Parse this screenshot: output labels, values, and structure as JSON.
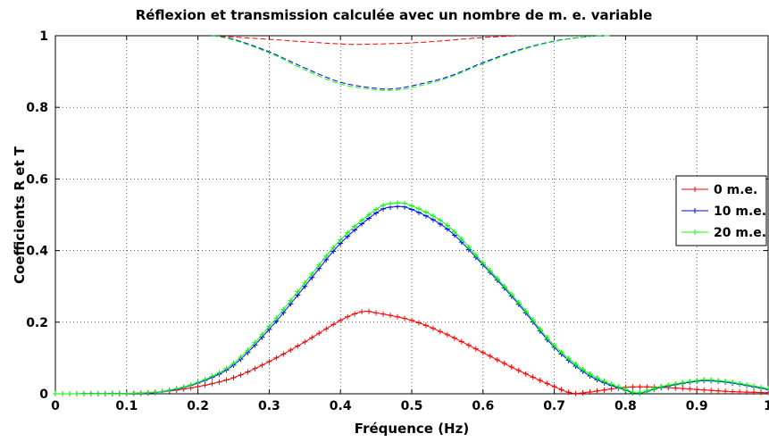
{
  "chart_data": {
    "type": "line",
    "title": "Réflexion et transmission calculée avec un nombre de m. e. variable",
    "xlabel": "Fréquence (Hz)",
    "ylabel": "Coefficients R et T",
    "xlim": [
      0,
      1
    ],
    "ylim": [
      0,
      1
    ],
    "xticks": [
      "0",
      "0.1",
      "0.2",
      "0.3",
      "0.4",
      "0.5",
      "0.6",
      "0.7",
      "0.8",
      "0.9",
      "1"
    ],
    "yticks": [
      "0",
      "0.2",
      "0.4",
      "0.6",
      "0.8",
      "1"
    ],
    "grid": true,
    "legend_position": "right",
    "series": [
      {
        "name": "0 m.e.",
        "color": "#ff0000",
        "marker": "plus",
        "points": [
          [
            0,
            0
          ],
          [
            0.1,
            0.001
          ],
          [
            0.15,
            0.006
          ],
          [
            0.2,
            0.02
          ],
          [
            0.25,
            0.045
          ],
          [
            0.3,
            0.09
          ],
          [
            0.35,
            0.145
          ],
          [
            0.4,
            0.205
          ],
          [
            0.43,
            0.229
          ],
          [
            0.45,
            0.226
          ],
          [
            0.5,
            0.205
          ],
          [
            0.55,
            0.165
          ],
          [
            0.6,
            0.115
          ],
          [
            0.65,
            0.065
          ],
          [
            0.7,
            0.02
          ],
          [
            0.725,
            0.002
          ],
          [
            0.75,
            0.005
          ],
          [
            0.8,
            0.018
          ],
          [
            0.85,
            0.018
          ],
          [
            0.9,
            0.012
          ],
          [
            0.95,
            0.006
          ],
          [
            1,
            0.003
          ]
        ]
      },
      {
        "name": "10 m.e.",
        "color": "#0000ff",
        "marker": "plus",
        "points": [
          [
            0,
            0
          ],
          [
            0.1,
            0.001
          ],
          [
            0.15,
            0.006
          ],
          [
            0.2,
            0.03
          ],
          [
            0.25,
            0.08
          ],
          [
            0.3,
            0.18
          ],
          [
            0.35,
            0.3
          ],
          [
            0.4,
            0.42
          ],
          [
            0.45,
            0.505
          ],
          [
            0.475,
            0.522
          ],
          [
            0.5,
            0.515
          ],
          [
            0.55,
            0.46
          ],
          [
            0.6,
            0.36
          ],
          [
            0.65,
            0.25
          ],
          [
            0.7,
            0.13
          ],
          [
            0.75,
            0.05
          ],
          [
            0.8,
            0.01
          ],
          [
            0.82,
            0.002
          ],
          [
            0.85,
            0.018
          ],
          [
            0.9,
            0.035
          ],
          [
            0.92,
            0.036
          ],
          [
            0.95,
            0.03
          ],
          [
            1,
            0.012
          ]
        ]
      },
      {
        "name": "20 m.e.",
        "color": "#00ff00",
        "marker": "plus",
        "points": [
          [
            0,
            0
          ],
          [
            0.1,
            0.001
          ],
          [
            0.15,
            0.007
          ],
          [
            0.2,
            0.032
          ],
          [
            0.25,
            0.085
          ],
          [
            0.3,
            0.188
          ],
          [
            0.35,
            0.31
          ],
          [
            0.4,
            0.43
          ],
          [
            0.45,
            0.515
          ],
          [
            0.475,
            0.532
          ],
          [
            0.5,
            0.525
          ],
          [
            0.55,
            0.47
          ],
          [
            0.6,
            0.365
          ],
          [
            0.65,
            0.255
          ],
          [
            0.7,
            0.135
          ],
          [
            0.75,
            0.055
          ],
          [
            0.8,
            0.012
          ],
          [
            0.82,
            0.003
          ],
          [
            0.85,
            0.02
          ],
          [
            0.9,
            0.037
          ],
          [
            0.92,
            0.038
          ],
          [
            0.95,
            0.032
          ],
          [
            1,
            0.014
          ]
        ]
      },
      {
        "name": "",
        "color": "#ff0000",
        "marker": "dashed",
        "points": [
          [
            0.22,
            1
          ],
          [
            0.3,
            0.99
          ],
          [
            0.35,
            0.983
          ],
          [
            0.4,
            0.977
          ],
          [
            0.43,
            0.976
          ],
          [
            0.5,
            0.98
          ],
          [
            0.55,
            0.987
          ],
          [
            0.6,
            0.995
          ],
          [
            0.65,
            1
          ]
        ]
      },
      {
        "name": "",
        "color": "#0000ff",
        "marker": "dashed",
        "points": [
          [
            0.22,
            1
          ],
          [
            0.25,
            0.99
          ],
          [
            0.3,
            0.955
          ],
          [
            0.35,
            0.91
          ],
          [
            0.4,
            0.87
          ],
          [
            0.45,
            0.853
          ],
          [
            0.475,
            0.852
          ],
          [
            0.5,
            0.86
          ],
          [
            0.55,
            0.885
          ],
          [
            0.6,
            0.925
          ],
          [
            0.65,
            0.96
          ],
          [
            0.7,
            0.985
          ],
          [
            0.75,
            0.998
          ],
          [
            0.78,
            1
          ]
        ]
      },
      {
        "name": "",
        "color": "#00ff00",
        "marker": "dashed",
        "points": [
          [
            0.22,
            1
          ],
          [
            0.25,
            0.988
          ],
          [
            0.3,
            0.952
          ],
          [
            0.35,
            0.905
          ],
          [
            0.4,
            0.865
          ],
          [
            0.45,
            0.849
          ],
          [
            0.475,
            0.848
          ],
          [
            0.5,
            0.855
          ],
          [
            0.55,
            0.882
          ],
          [
            0.6,
            0.922
          ],
          [
            0.65,
            0.958
          ],
          [
            0.7,
            0.984
          ],
          [
            0.75,
            0.998
          ],
          [
            0.78,
            1
          ]
        ]
      }
    ]
  }
}
